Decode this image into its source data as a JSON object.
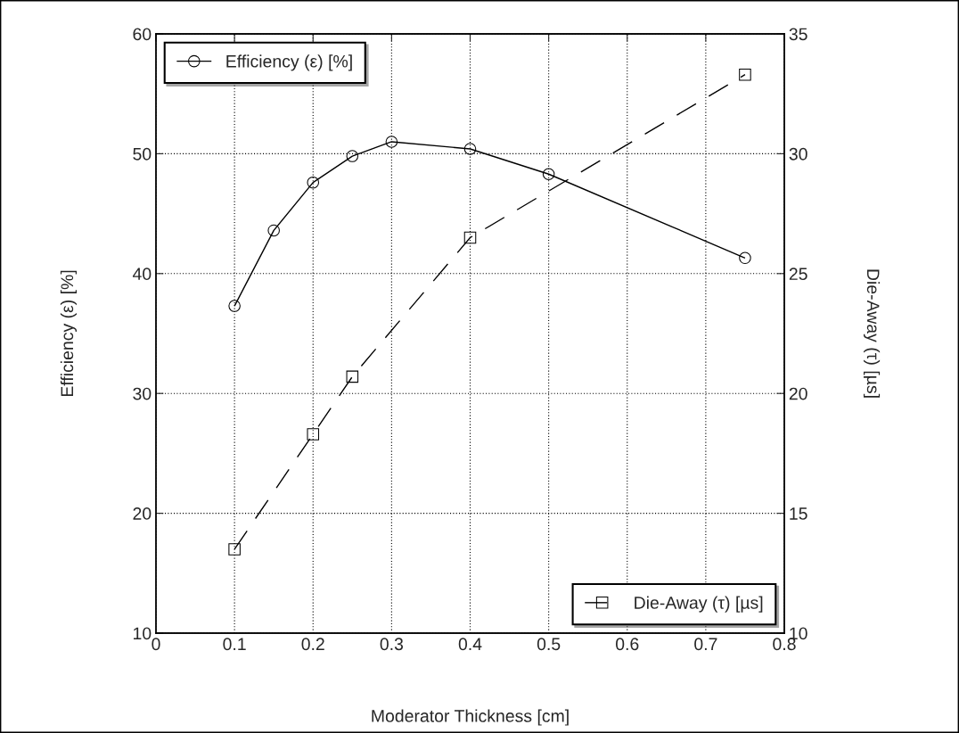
{
  "chart_data": {
    "type": "line",
    "xlabel": "Moderator Thickness [cm]",
    "ylabel": "Efficiency (ε) [%]",
    "y2label": "Die-Away (τ) [µs]",
    "xlim": [
      0,
      0.8
    ],
    "xticks": [
      0,
      0.1,
      0.2,
      0.3,
      0.4,
      0.5,
      0.6,
      0.7,
      0.8
    ],
    "ylim": [
      10,
      60
    ],
    "yticks": [
      10,
      20,
      30,
      40,
      50,
      60
    ],
    "y2lim": [
      10,
      35
    ],
    "y2ticks": [
      10,
      15,
      20,
      25,
      30,
      35
    ],
    "grid": true,
    "legend": [
      "top left",
      "bottom right"
    ],
    "series": [
      {
        "name": "Efficiency (ε) [%]",
        "color": "#000000",
        "marker": "circle",
        "line_style": "solid",
        "x": [
          0.1,
          0.15,
          0.2,
          0.25,
          0.3,
          0.4,
          0.5,
          0.75
        ],
        "values": [
          37.3,
          43.6,
          47.6,
          49.8,
          51.0,
          50.4,
          48.3,
          41.3
        ]
      },
      {
        "name": "Die-Away (τ) [µs]",
        "color": "#000000",
        "marker": "square",
        "line_style": "dashed",
        "axis": "y2",
        "x": [
          0.1,
          0.2,
          0.25,
          0.4,
          0.75
        ],
        "values": [
          13.5,
          18.3,
          20.7,
          26.5,
          33.3
        ]
      }
    ]
  }
}
